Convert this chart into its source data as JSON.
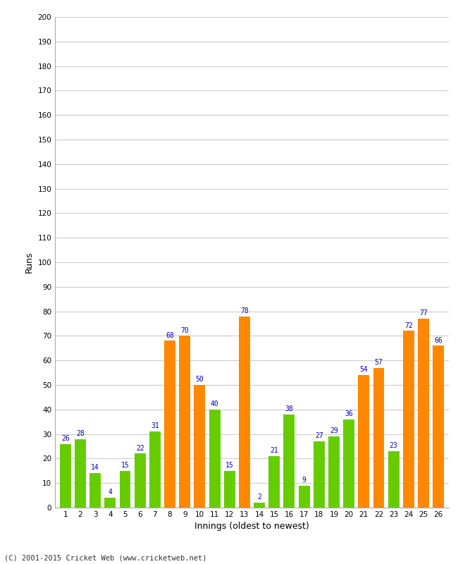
{
  "innings": [
    1,
    2,
    3,
    4,
    5,
    6,
    7,
    8,
    9,
    10,
    11,
    12,
    13,
    14,
    15,
    16,
    17,
    18,
    19,
    20,
    21,
    22,
    23,
    24,
    25,
    26
  ],
  "values": [
    26,
    28,
    14,
    4,
    15,
    22,
    31,
    68,
    70,
    50,
    40,
    15,
    78,
    2,
    21,
    38,
    9,
    27,
    29,
    36,
    54,
    57,
    23,
    72,
    77,
    66
  ],
  "colors": [
    "#66cc00",
    "#66cc00",
    "#66cc00",
    "#66cc00",
    "#66cc00",
    "#66cc00",
    "#66cc00",
    "#ff8800",
    "#ff8800",
    "#ff8800",
    "#66cc00",
    "#66cc00",
    "#ff8800",
    "#66cc00",
    "#66cc00",
    "#66cc00",
    "#66cc00",
    "#66cc00",
    "#66cc00",
    "#66cc00",
    "#ff8800",
    "#ff8800",
    "#66cc00",
    "#ff8800",
    "#ff8800",
    "#ff8800"
  ],
  "xlabel": "Innings (oldest to newest)",
  "ylabel": "Runs",
  "ylim": [
    0,
    200
  ],
  "yticks": [
    0,
    10,
    20,
    30,
    40,
    50,
    60,
    70,
    80,
    90,
    100,
    110,
    120,
    130,
    140,
    150,
    160,
    170,
    180,
    190,
    200
  ],
  "label_color": "#0000cc",
  "label_fontsize": 7.0,
  "background_color": "#ffffff",
  "grid_color": "#cccccc",
  "footer": "(C) 2001-2015 Cricket Web (www.cricketweb.net)"
}
